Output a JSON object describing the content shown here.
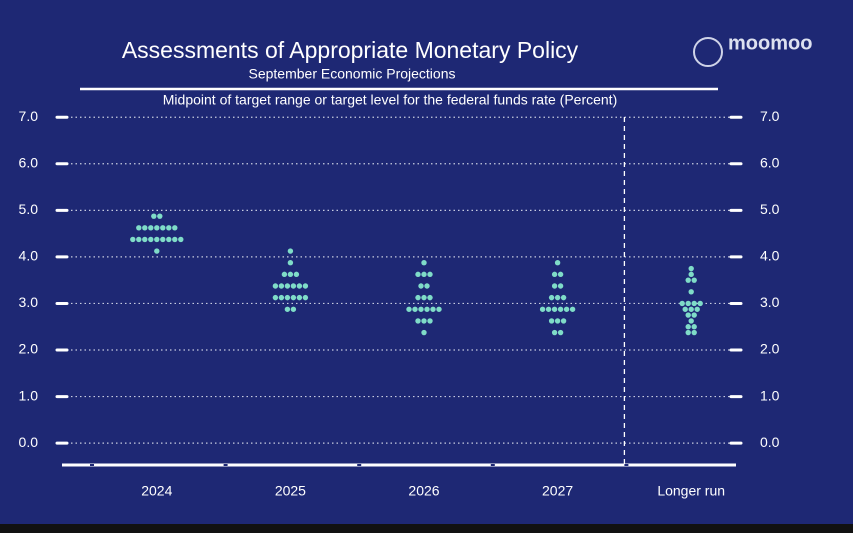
{
  "chart_data": {
    "type": "dot",
    "title": "Assessments of Appropriate Monetary Policy",
    "subtitle": "September Economic Projections",
    "y_label": "Midpoint of target range or target level for the federal funds rate (Percent)",
    "logo": "moomoo",
    "color": "#7fdcc8",
    "categories": [
      "2024",
      "2025",
      "2026",
      "2027",
      "Longer run"
    ],
    "divider_after": 3,
    "series": [
      {
        "points": [
          {
            "y": 4.875,
            "count": 2
          },
          {
            "y": 4.625,
            "count": 7
          },
          {
            "y": 4.375,
            "count": 9
          },
          {
            "y": 4.125,
            "count": 1
          }
        ]
      },
      {
        "points": [
          {
            "y": 4.125,
            "count": 1
          },
          {
            "y": 3.875,
            "count": 1
          },
          {
            "y": 3.625,
            "count": 3
          },
          {
            "y": 3.375,
            "count": 6
          },
          {
            "y": 3.125,
            "count": 6
          },
          {
            "y": 2.875,
            "count": 2
          }
        ]
      },
      {
        "points": [
          {
            "y": 3.875,
            "count": 1
          },
          {
            "y": 3.625,
            "count": 3
          },
          {
            "y": 3.375,
            "count": 2
          },
          {
            "y": 3.125,
            "count": 3
          },
          {
            "y": 2.875,
            "count": 6
          },
          {
            "y": 2.625,
            "count": 3
          },
          {
            "y": 2.375,
            "count": 1
          }
        ]
      },
      {
        "points": [
          {
            "y": 3.875,
            "count": 1
          },
          {
            "y": 3.625,
            "count": 2
          },
          {
            "y": 3.375,
            "count": 2
          },
          {
            "y": 3.125,
            "count": 3
          },
          {
            "y": 2.875,
            "count": 6
          },
          {
            "y": 2.625,
            "count": 3
          },
          {
            "y": 2.375,
            "count": 2
          }
        ]
      },
      {
        "points": [
          {
            "y": 3.75,
            "count": 1
          },
          {
            "y": 3.625,
            "count": 1
          },
          {
            "y": 3.5,
            "count": 2
          },
          {
            "y": 3.25,
            "count": 1
          },
          {
            "y": 3.0,
            "count": 4
          },
          {
            "y": 2.875,
            "count": 3
          },
          {
            "y": 2.75,
            "count": 2
          },
          {
            "y": 2.625,
            "count": 1
          },
          {
            "y": 2.5,
            "count": 2
          },
          {
            "y": 2.375,
            "count": 2
          }
        ]
      }
    ],
    "ylim": [
      -0.47,
      7.37
    ],
    "yticks": [
      {
        "value": 0,
        "label": "0.0"
      },
      {
        "value": 1,
        "label": "1.0"
      },
      {
        "value": 2,
        "label": "2.0"
      },
      {
        "value": 3,
        "label": "3.0"
      },
      {
        "value": 4,
        "label": "4.0"
      },
      {
        "value": 5,
        "label": "5.0"
      },
      {
        "value": 6,
        "label": "6.0"
      },
      {
        "value": 7,
        "label": "7.0"
      }
    ],
    "grid": true
  }
}
